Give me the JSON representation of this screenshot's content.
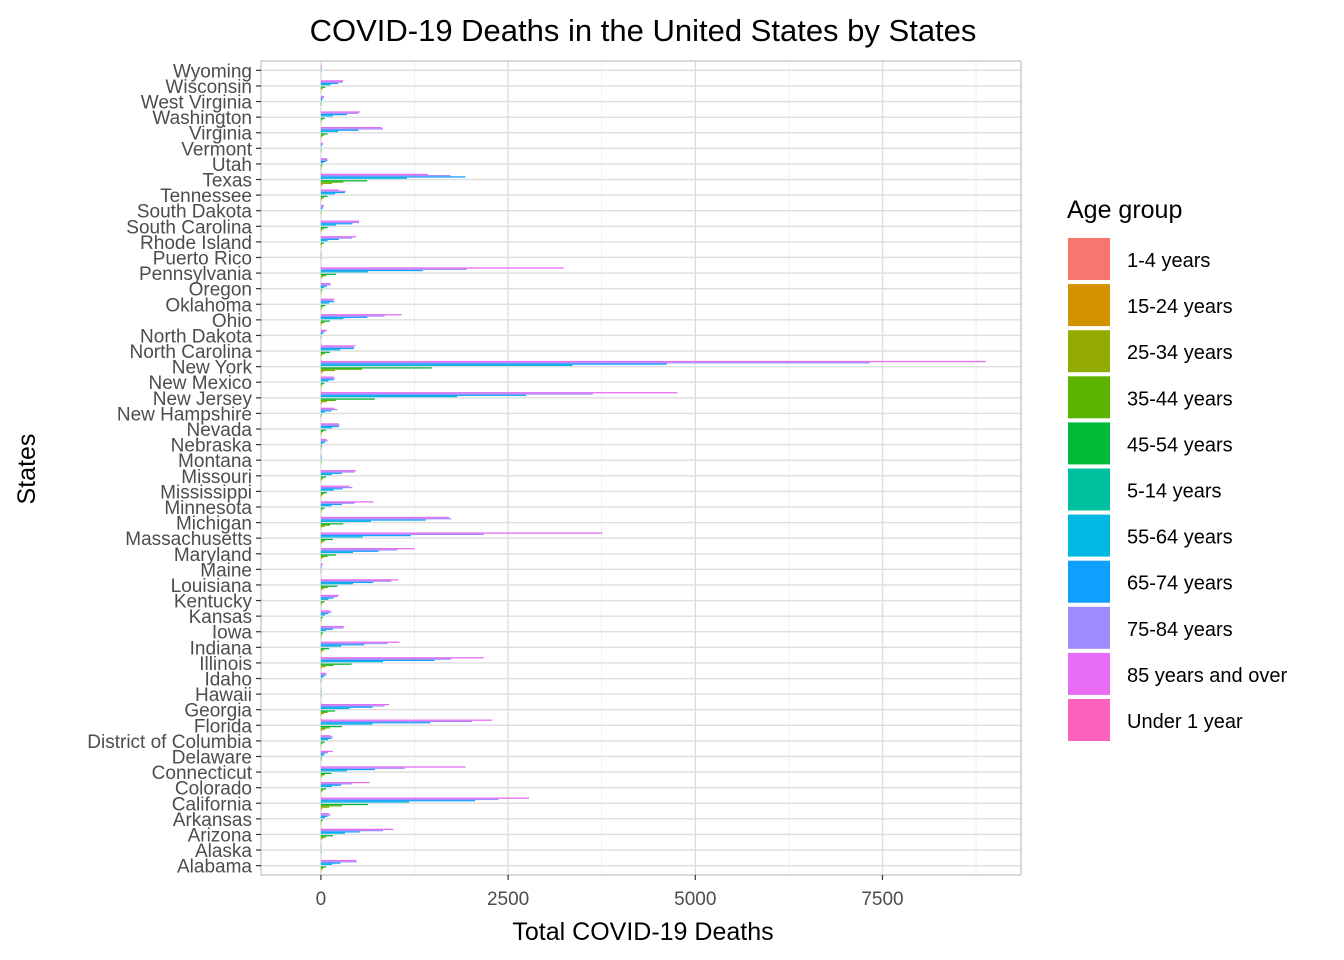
{
  "chart_data": {
    "type": "bar",
    "orientation": "horizontal",
    "title": "COVID-19 Deaths in the United States by States",
    "xlabel": "Total COVID-19 Deaths",
    "ylabel": "States",
    "xlim": [
      -800,
      9350
    ],
    "xticks": [
      0,
      2500,
      5000,
      7500
    ],
    "xtick_labels": [
      "0",
      "2500",
      "5000",
      "7500"
    ],
    "grid": true,
    "legend_position": "right",
    "legend_title": "Age group",
    "categories": [
      "Alabama",
      "Alaska",
      "Arizona",
      "Arkansas",
      "California",
      "Colorado",
      "Connecticut",
      "Delaware",
      "District of Columbia",
      "Florida",
      "Georgia",
      "Hawaii",
      "Idaho",
      "Illinois",
      "Indiana",
      "Iowa",
      "Kansas",
      "Kentucky",
      "Louisiana",
      "Maine",
      "Maryland",
      "Massachusetts",
      "Michigan",
      "Minnesota",
      "Mississippi",
      "Missouri",
      "Montana",
      "Nebraska",
      "Nevada",
      "New Hampshire",
      "New Jersey",
      "New Mexico",
      "New York",
      "North Carolina",
      "North Dakota",
      "Ohio",
      "Oklahoma",
      "Oregon",
      "Pennsylvania",
      "Puerto Rico",
      "Rhode Island",
      "South Carolina",
      "South Dakota",
      "Tennessee",
      "Texas",
      "Utah",
      "Vermont",
      "Virginia",
      "Washington",
      "West Virginia",
      "Wisconsin",
      "Wyoming"
    ],
    "series": [
      {
        "name": "1-4 years",
        "color": "#F8766D",
        "values": [
          0,
          0,
          0,
          0,
          1,
          0,
          0,
          0,
          0,
          0,
          0,
          0,
          0,
          0,
          0,
          0,
          0,
          0,
          0,
          0,
          0,
          0,
          0,
          0,
          0,
          0,
          0,
          0,
          0,
          0,
          1,
          0,
          1,
          0,
          0,
          0,
          0,
          0,
          0,
          0,
          0,
          0,
          0,
          0,
          1,
          0,
          0,
          0,
          0,
          0,
          0,
          0
        ]
      },
      {
        "name": "15-24 years",
        "color": "#D39200",
        "values": [
          2,
          0,
          5,
          1,
          20,
          2,
          3,
          0,
          1,
          15,
          8,
          0,
          0,
          10,
          3,
          1,
          1,
          2,
          6,
          0,
          5,
          8,
          8,
          1,
          3,
          2,
          0,
          0,
          2,
          0,
          12,
          1,
          35,
          3,
          0,
          4,
          2,
          1,
          6,
          0,
          1,
          3,
          0,
          3,
          25,
          1,
          0,
          3,
          2,
          0,
          1,
          0
        ]
      },
      {
        "name": "25-34 years",
        "color": "#93AA00",
        "values": [
          15,
          0,
          30,
          5,
          110,
          12,
          20,
          2,
          6,
          60,
          40,
          0,
          2,
          60,
          20,
          5,
          4,
          8,
          40,
          0,
          35,
          30,
          50,
          8,
          18,
          12,
          0,
          2,
          12,
          2,
          80,
          8,
          190,
          20,
          0,
          18,
          10,
          3,
          25,
          0,
          4,
          15,
          0,
          15,
          150,
          2,
          0,
          15,
          8,
          1,
          8,
          0
        ]
      },
      {
        "name": "35-44 years",
        "color": "#5BB300",
        "values": [
          30,
          1,
          70,
          8,
          280,
          30,
          55,
          5,
          20,
          120,
          90,
          1,
          4,
          170,
          45,
          12,
          10,
          20,
          90,
          1,
          90,
          60,
          120,
          20,
          40,
          30,
          1,
          5,
          30,
          5,
          200,
          20,
          550,
          55,
          2,
          50,
          25,
          8,
          70,
          0,
          15,
          40,
          1,
          40,
          300,
          8,
          1,
          40,
          20,
          3,
          25,
          0
        ]
      },
      {
        "name": "45-54 years",
        "color": "#00BA38",
        "values": [
          70,
          2,
          160,
          25,
          630,
          70,
          140,
          12,
          50,
          280,
          190,
          1,
          10,
          410,
          110,
          30,
          25,
          50,
          220,
          2,
          200,
          160,
          300,
          50,
          80,
          70,
          2,
          15,
          70,
          12,
          720,
          45,
          1480,
          120,
          6,
          120,
          60,
          20,
          200,
          1,
          40,
          90,
          3,
          90,
          620,
          20,
          2,
          90,
          50,
          7,
          60,
          1
        ]
      },
      {
        "name": "5-14 years",
        "color": "#00C19F",
        "values": [
          0,
          0,
          1,
          0,
          2,
          0,
          0,
          0,
          0,
          2,
          1,
          0,
          0,
          1,
          0,
          0,
          0,
          0,
          1,
          0,
          1,
          1,
          1,
          0,
          0,
          0,
          0,
          0,
          0,
          0,
          2,
          0,
          5,
          0,
          0,
          0,
          0,
          0,
          1,
          0,
          0,
          0,
          0,
          0,
          3,
          0,
          0,
          1,
          0,
          0,
          0,
          0
        ]
      },
      {
        "name": "55-64 years",
        "color": "#00B9E3",
        "values": [
          150,
          3,
          320,
          55,
          1180,
          150,
          350,
          30,
          95,
          690,
          380,
          3,
          25,
          830,
          270,
          70,
          55,
          100,
          430,
          5,
          430,
          560,
          670,
          140,
          170,
          150,
          5,
          30,
          150,
          50,
          1820,
          100,
          3360,
          260,
          15,
          300,
          110,
          45,
          630,
          2,
          90,
          200,
          10,
          190,
          1150,
          35,
          5,
          230,
          160,
          15,
          130,
          3
        ]
      },
      {
        "name": "65-74 years",
        "color": "#0FA0FF",
        "values": [
          260,
          4,
          520,
          90,
          2060,
          270,
          720,
          55,
          140,
          1460,
          690,
          5,
          50,
          1520,
          580,
          160,
          100,
          170,
          700,
          10,
          770,
          1200,
          1400,
          280,
          290,
          280,
          10,
          60,
          240,
          140,
          2740,
          170,
          4620,
          440,
          35,
          620,
          180,
          80,
          1360,
          3,
          240,
          420,
          25,
          320,
          1930,
          70,
          10,
          500,
          350,
          25,
          230,
          5
        ]
      },
      {
        "name": "75-84 years",
        "color": "#9F8CFF",
        "values": [
          480,
          5,
          830,
          130,
          2370,
          420,
          1120,
          95,
          160,
          2020,
          850,
          5,
          80,
          1740,
          890,
          300,
          140,
          220,
          940,
          15,
          1020,
          2180,
          1740,
          450,
          420,
          450,
          10,
          90,
          250,
          220,
          3630,
          190,
          7330,
          440,
          60,
          850,
          160,
          130,
          1950,
          3,
          420,
          510,
          35,
          330,
          1730,
          100,
          25,
          830,
          500,
          40,
          290,
          8
        ]
      },
      {
        "name": "85 years and over",
        "color": "#E76BF3",
        "values": [
          470,
          2,
          970,
          110,
          2780,
          650,
          1930,
          160,
          130,
          2290,
          910,
          5,
          70,
          2170,
          1050,
          310,
          130,
          240,
          1030,
          30,
          1250,
          3760,
          1710,
          700,
          380,
          470,
          10,
          80,
          240,
          180,
          4760,
          170,
          8880,
          460,
          80,
          1080,
          180,
          130,
          3240,
          5,
          470,
          510,
          40,
          240,
          1430,
          80,
          30,
          810,
          520,
          40,
          300,
          8
        ]
      },
      {
        "name": "Under 1 year",
        "color": "#FF62BC",
        "values": [
          0,
          0,
          1,
          0,
          2,
          0,
          0,
          0,
          0,
          1,
          1,
          0,
          0,
          1,
          0,
          0,
          0,
          0,
          1,
          0,
          0,
          0,
          1,
          0,
          0,
          0,
          0,
          0,
          0,
          0,
          1,
          0,
          3,
          1,
          0,
          0,
          0,
          0,
          1,
          0,
          0,
          0,
          0,
          0,
          2,
          0,
          0,
          0,
          0,
          0,
          0,
          0
        ]
      }
    ]
  }
}
